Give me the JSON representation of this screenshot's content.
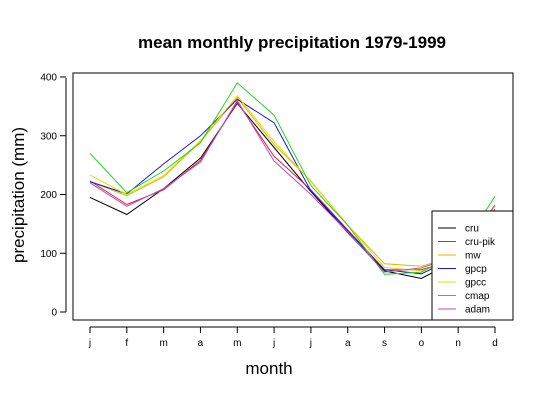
{
  "chart_data": {
    "type": "line",
    "title": "mean monthly precipitation 1979-1999",
    "xlabel": "month",
    "ylabel": "precipitation (mm)",
    "categories": [
      "j",
      "f",
      "m",
      "a",
      "m",
      "j",
      "j",
      "a",
      "s",
      "o",
      "n",
      "d"
    ],
    "ylim": [
      -15,
      405
    ],
    "yticks": [
      0,
      100,
      200,
      300,
      400
    ],
    "grid": false,
    "legend_position": "bottom-right",
    "series": [
      {
        "name": "cru",
        "color": "#000000",
        "values": [
          195,
          166,
          210,
          262,
          355,
          280,
          205,
          135,
          70,
          57,
          90,
          170
        ]
      },
      {
        "name": "cru-pik",
        "color": "#e0203a",
        "values": [
          223,
          183,
          208,
          258,
          357,
          265,
          208,
          140,
          72,
          72,
          90,
          175
        ]
      },
      {
        "name": "mw",
        "color": "#d8b800",
        "values": [
          222,
          198,
          230,
          290,
          365,
          285,
          223,
          148,
          82,
          78,
          96,
          182
        ]
      },
      {
        "name": "gpcp",
        "color": "#1a1ad8",
        "values": [
          222,
          201,
          252,
          300,
          362,
          322,
          206,
          138,
          72,
          65,
          95,
          170
        ]
      },
      {
        "name": "gpcc",
        "color": "#f0d800",
        "values": [
          233,
          200,
          232,
          292,
          368,
          290,
          222,
          148,
          76,
          70,
          92,
          180
        ]
      },
      {
        "name": "cmap",
        "color": "#22d822",
        "values": [
          270,
          203,
          240,
          288,
          390,
          335,
          215,
          148,
          64,
          68,
          100,
          197
        ]
      },
      {
        "name": "adam",
        "color": "#b050c8",
        "values": [
          220,
          180,
          210,
          255,
          360,
          257,
          200,
          136,
          68,
          75,
          96,
          182
        ]
      }
    ]
  }
}
